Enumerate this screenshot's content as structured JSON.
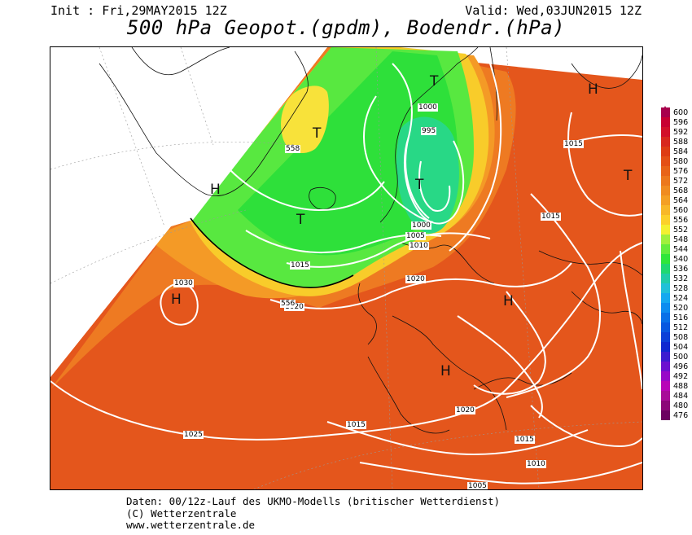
{
  "header": {
    "init": "Init : Fri,29MAY2015 12Z",
    "valid": "Valid: Wed,03JUN2015 12Z",
    "title": "500 hPa Geopot.(gpdm), Bodendr.(hPa)"
  },
  "map": {
    "isobar_labels": [
      "1030",
      "1025",
      "1020",
      "1020",
      "1020",
      "1015",
      "1015",
      "1015",
      "1015",
      "1010",
      "1010",
      "1005",
      "1005",
      "1000",
      "1000",
      "995",
      "558",
      "556",
      "1015"
    ],
    "pressure_centers": [
      "H",
      "H",
      "H",
      "H",
      "H",
      "T",
      "T",
      "T",
      "T",
      "T"
    ]
  },
  "legend": {
    "units": "gpdm",
    "values": [
      "600",
      "596",
      "592",
      "588",
      "584",
      "580",
      "576",
      "572",
      "568",
      "564",
      "560",
      "556",
      "552",
      "548",
      "544",
      "540",
      "536",
      "532",
      "528",
      "524",
      "520",
      "516",
      "512",
      "508",
      "504",
      "500",
      "496",
      "492",
      "488",
      "484",
      "480",
      "476"
    ],
    "colors": [
      "#a8004c",
      "#c80032",
      "#d2102a",
      "#d8281e",
      "#de3c14",
      "#e45016",
      "#e86418",
      "#ec781c",
      "#f08c20",
      "#f4a024",
      "#f8b828",
      "#fcd02a",
      "#f4f030",
      "#a0f03c",
      "#64ec3c",
      "#30e63a",
      "#20d870",
      "#20cca8",
      "#20c0d8",
      "#14a8f0",
      "#0c8cf0",
      "#0870e8",
      "#0858e0",
      "#0c40d8",
      "#1028d0",
      "#3c1cd0",
      "#6c10d0",
      "#9808c8",
      "#b804b8",
      "#a80c98",
      "#8c0878",
      "#6c0060"
    ]
  },
  "footer": {
    "line1": "Daten: 00/12z-Lauf des UKMO-Modells (britischer Wetterdienst)",
    "line2": "(C) Wetterzentrale",
    "line3": "www.wetterzentrale.de"
  }
}
